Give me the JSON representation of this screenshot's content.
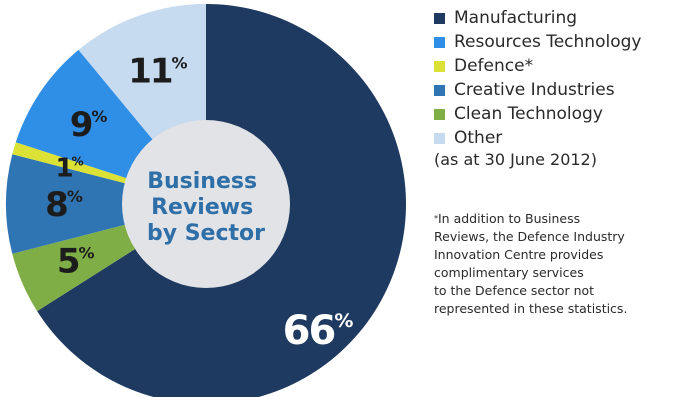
{
  "chart_data": {
    "type": "pie",
    "style": "donut",
    "center_label": [
      "Business",
      "Reviews",
      "by Sector"
    ],
    "categories": [
      "Manufacturing",
      "Clean Technology",
      "Creative Industries",
      "Defence",
      "Resources Technology",
      "Other"
    ],
    "values": [
      66,
      5,
      8,
      1,
      9,
      11
    ],
    "value_labels": [
      "66%",
      "5%",
      "8%",
      "1%",
      "9%",
      "11%"
    ],
    "colors": [
      "#1f3a60",
      "#7fae46",
      "#2f74b3",
      "#dbe135",
      "#2f8ee6",
      "#c6daf0"
    ],
    "label_colors": [
      "#ffffff",
      "#1c1c1c",
      "#1c1c1c",
      "#1c1c1c",
      "#1c1c1c",
      "#1c1c1c"
    ],
    "start_angle_deg": 0,
    "direction": "clockwise"
  },
  "legend": {
    "items": [
      {
        "label": "Manufacturing",
        "color": "#1f3a60"
      },
      {
        "label": "Resources Technology",
        "color": "#2f8ee6"
      },
      {
        "label": "Defence*",
        "color": "#dbe135"
      },
      {
        "label": "Creative Industries",
        "color": "#2f74b3"
      },
      {
        "label": "Clean Technology",
        "color": "#7fae46"
      },
      {
        "label": "Other",
        "color": "#c6daf0"
      }
    ],
    "as_at": "(as at 30 June 2012)"
  },
  "footnote": {
    "mark": "*",
    "lines": [
      "In addition to Business",
      "Reviews, the Defence Industry",
      "Innovation Centre provides",
      "complimentary services",
      "to the Defence sector not",
      "represented in these statistics."
    ]
  }
}
